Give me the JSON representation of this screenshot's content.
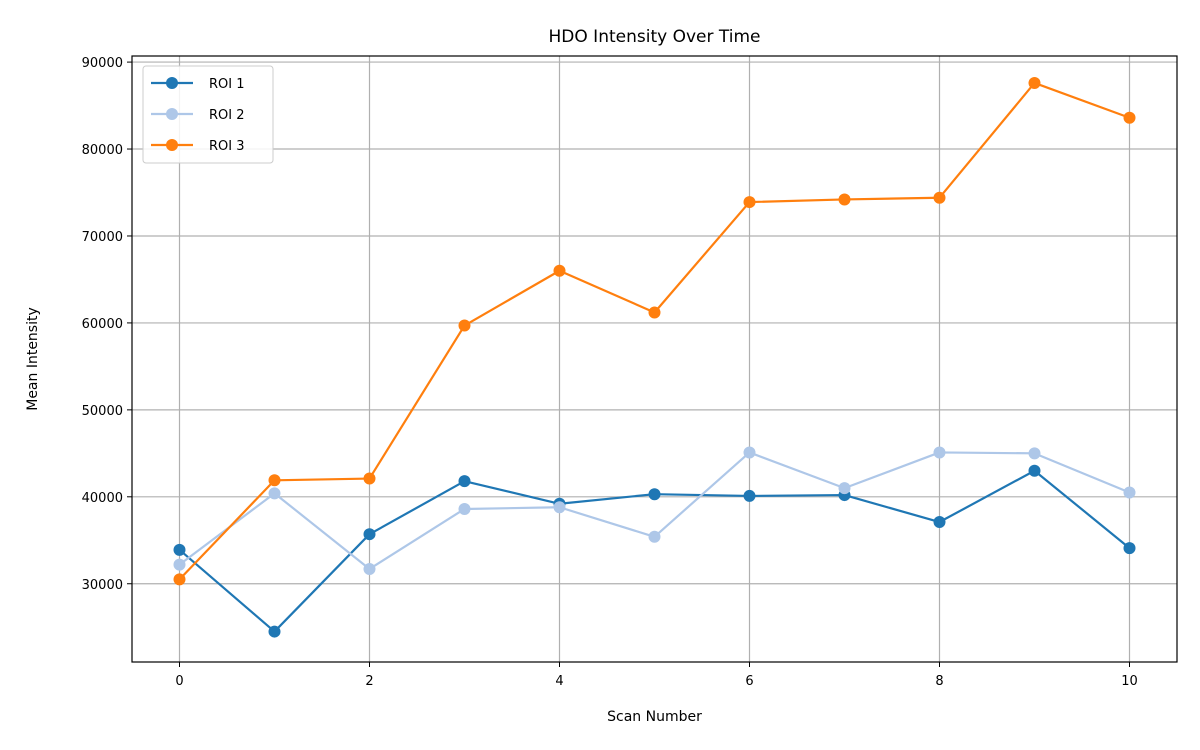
{
  "chart_data": {
    "type": "line",
    "title": "HDO Intensity Over Time",
    "xlabel": "Scan Number",
    "ylabel": "Mean Intensity",
    "x": [
      0,
      1,
      2,
      3,
      4,
      5,
      6,
      7,
      8,
      9,
      10
    ],
    "xlim": [
      -0.5,
      10.5
    ],
    "ylim": [
      21000,
      90700
    ],
    "xticks": [
      0,
      2,
      4,
      6,
      8,
      10
    ],
    "yticks": [
      30000,
      40000,
      50000,
      60000,
      70000,
      80000,
      90000
    ],
    "grid": true,
    "legend_position": "top-left",
    "series": [
      {
        "name": "ROI 1",
        "color": "#1f77b4",
        "values": [
          33900,
          24500,
          35700,
          41800,
          39200,
          40300,
          40100,
          40200,
          37100,
          43000,
          34100
        ]
      },
      {
        "name": "ROI 2",
        "color": "#aec7e8",
        "values": [
          32200,
          40400,
          31700,
          38600,
          38800,
          35400,
          45100,
          41000,
          45100,
          45000,
          40500
        ]
      },
      {
        "name": "ROI 3",
        "color": "#ff7f0e",
        "values": [
          30500,
          41900,
          42100,
          59700,
          66000,
          61200,
          73900,
          74200,
          74400,
          87600,
          83600
        ]
      }
    ]
  }
}
